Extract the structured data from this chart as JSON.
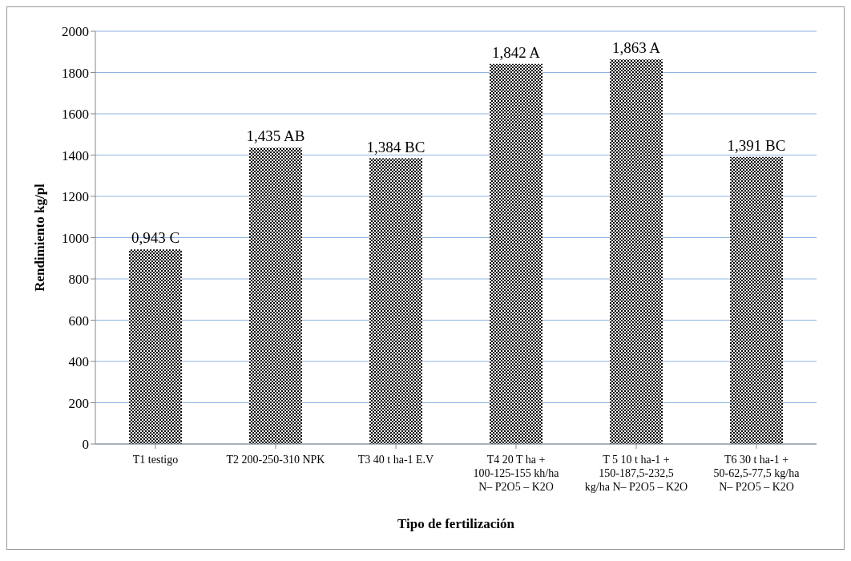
{
  "chart_data": {
    "type": "bar",
    "xlabel": "Tipo de fertilización",
    "ylabel": "Rendimiento kg/pl",
    "categories": [
      "T1 testigo",
      "T2 200-250-310 NPK",
      "T3 40 t ha-1 E.V",
      "T4 20 T ha + 100-125-155 kh/ha N– P2O5 – K2O",
      "T 5 10 t ha-1 + 150-187,5-232,5 kg/ha N– P2O5 – K2O",
      "T6 30 t ha-1 + 50-62,5-77,5 kg/ha N– P2O5 – K2O"
    ],
    "values": [
      943,
      1435,
      1384,
      1842,
      1863,
      1391
    ],
    "annotations": [
      {
        "text": "0,943 C",
        "x": "T1 testigo",
        "y": 943
      },
      {
        "text": "1,435 AB",
        "x": "T2 200-250-310 NPK",
        "y": 1435
      },
      {
        "text": "1,384 BC",
        "x": "T3 40 t ha-1 E.V",
        "y": 1384
      },
      {
        "text": "1,842 A",
        "x": "T4 20 T ha + 100-125-155 kh/ha N– P2O5 – K2O",
        "y": 1842
      },
      {
        "text": "1,863 A",
        "x": "T 5 10 t ha-1 + 150-187,5-232,5 kg/ha N– P2O5 – K2O",
        "y": 1863
      },
      {
        "text": "1,391 BC",
        "x": "T6 30 t ha-1 + 50-62,5-77,5 kg/ha N– P2O5 – K2O",
        "y": 1391
      }
    ],
    "color": "#000000",
    "ylim": [
      0,
      2000
    ],
    "yticks": [
      0,
      200,
      400,
      600,
      800,
      1000,
      1200,
      1400,
      1600,
      1800,
      2000
    ],
    "grid": "y",
    "legend": false
  }
}
